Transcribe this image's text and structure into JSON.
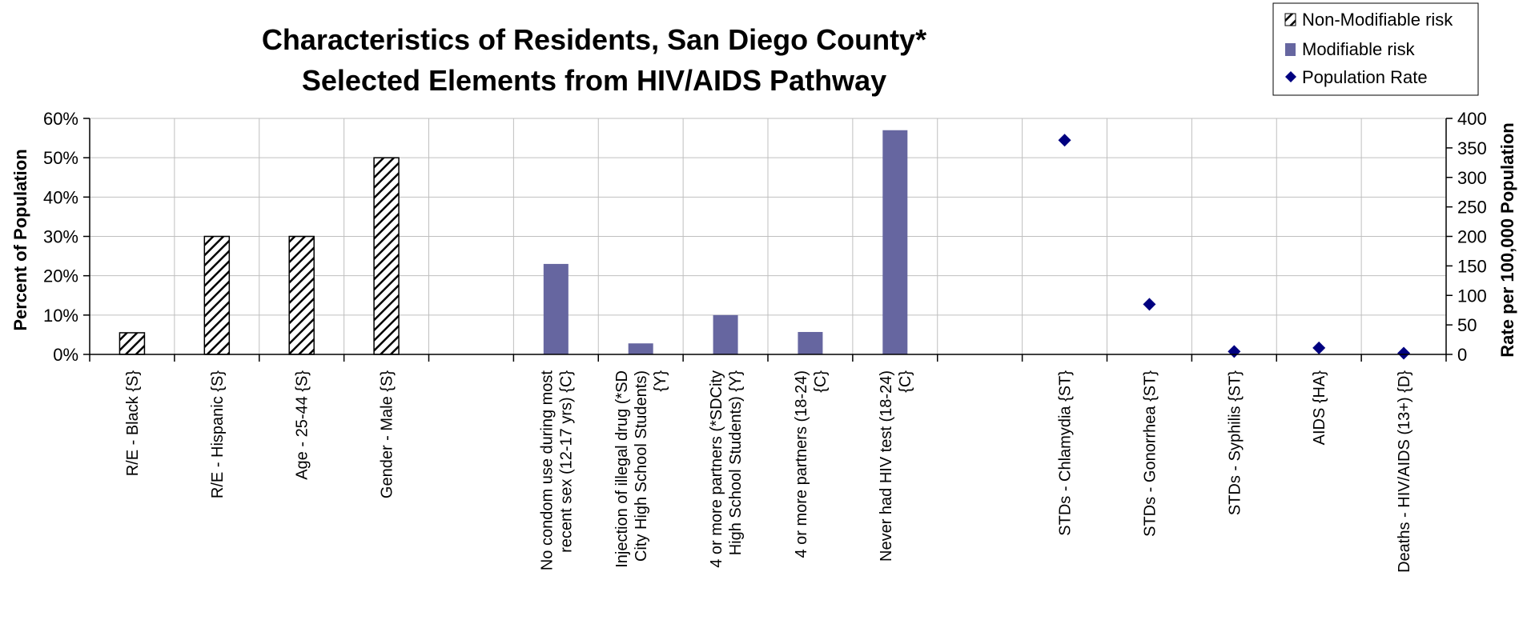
{
  "chart_data": {
    "type": "bar",
    "title_lines": [
      "Characteristics of Residents, San Diego County*",
      "Selected Elements from HIV/AIDS Pathway"
    ],
    "ylabel": "Percent of Population",
    "y2label": "Rate per 100,000 Population",
    "ylim": [
      0,
      60
    ],
    "y2lim": [
      0,
      400
    ],
    "yticks": [
      "0%",
      "10%",
      "20%",
      "30%",
      "40%",
      "50%",
      "60%"
    ],
    "y2ticks": [
      "0",
      "50",
      "100",
      "150",
      "200",
      "250",
      "300",
      "350",
      "400"
    ],
    "grid": true,
    "legend_position": "top-right",
    "categories": [
      {
        "lines": [
          "R/E - Black {S}"
        ]
      },
      {
        "lines": [
          "R/E - Hispanic {S}"
        ]
      },
      {
        "lines": [
          "Age - 25-44 {S}"
        ]
      },
      {
        "lines": [
          "Gender - Male {S}"
        ]
      },
      {
        "lines": [
          ""
        ]
      },
      {
        "lines": [
          "No condom use during most",
          "recent sex (12-17 yrs) {C}"
        ]
      },
      {
        "lines": [
          "Injection of illegal drug (*SD",
          "City High School Students)",
          "{Y}"
        ]
      },
      {
        "lines": [
          "4 or more partners (*SDCity",
          "High School Students) {Y}"
        ]
      },
      {
        "lines": [
          "4 or more partners (18-24)",
          "{C}"
        ]
      },
      {
        "lines": [
          "Never had HIV test (18-24)",
          "{C}"
        ]
      },
      {
        "lines": [
          ""
        ]
      },
      {
        "lines": [
          "STDs - Chlamydia {ST}"
        ]
      },
      {
        "lines": [
          "STDs - Gonorrhea {ST}"
        ]
      },
      {
        "lines": [
          "STDs - Syphilis {ST}"
        ]
      },
      {
        "lines": [
          "AIDS {HA}"
        ]
      },
      {
        "lines": [
          "Deaths - HIV/AIDS (13+) {D}"
        ]
      }
    ],
    "series": [
      {
        "name": "Non-Modifiable risk",
        "kind": "bar",
        "axis": "left",
        "pattern": "hatch",
        "values": [
          5.5,
          30,
          30,
          50,
          null,
          null,
          null,
          null,
          null,
          null,
          null,
          null,
          null,
          null,
          null,
          null
        ]
      },
      {
        "name": "Modifiable risk",
        "kind": "bar",
        "axis": "left",
        "color": "#6666a0",
        "values": [
          null,
          null,
          null,
          null,
          null,
          23,
          2.8,
          10,
          5.7,
          57,
          null,
          null,
          null,
          null,
          null,
          null
        ]
      },
      {
        "name": "Population Rate",
        "kind": "marker",
        "axis": "right",
        "color": "#000080",
        "values": [
          null,
          null,
          null,
          null,
          null,
          null,
          null,
          null,
          null,
          null,
          null,
          363,
          85,
          5,
          11,
          2
        ]
      }
    ]
  }
}
